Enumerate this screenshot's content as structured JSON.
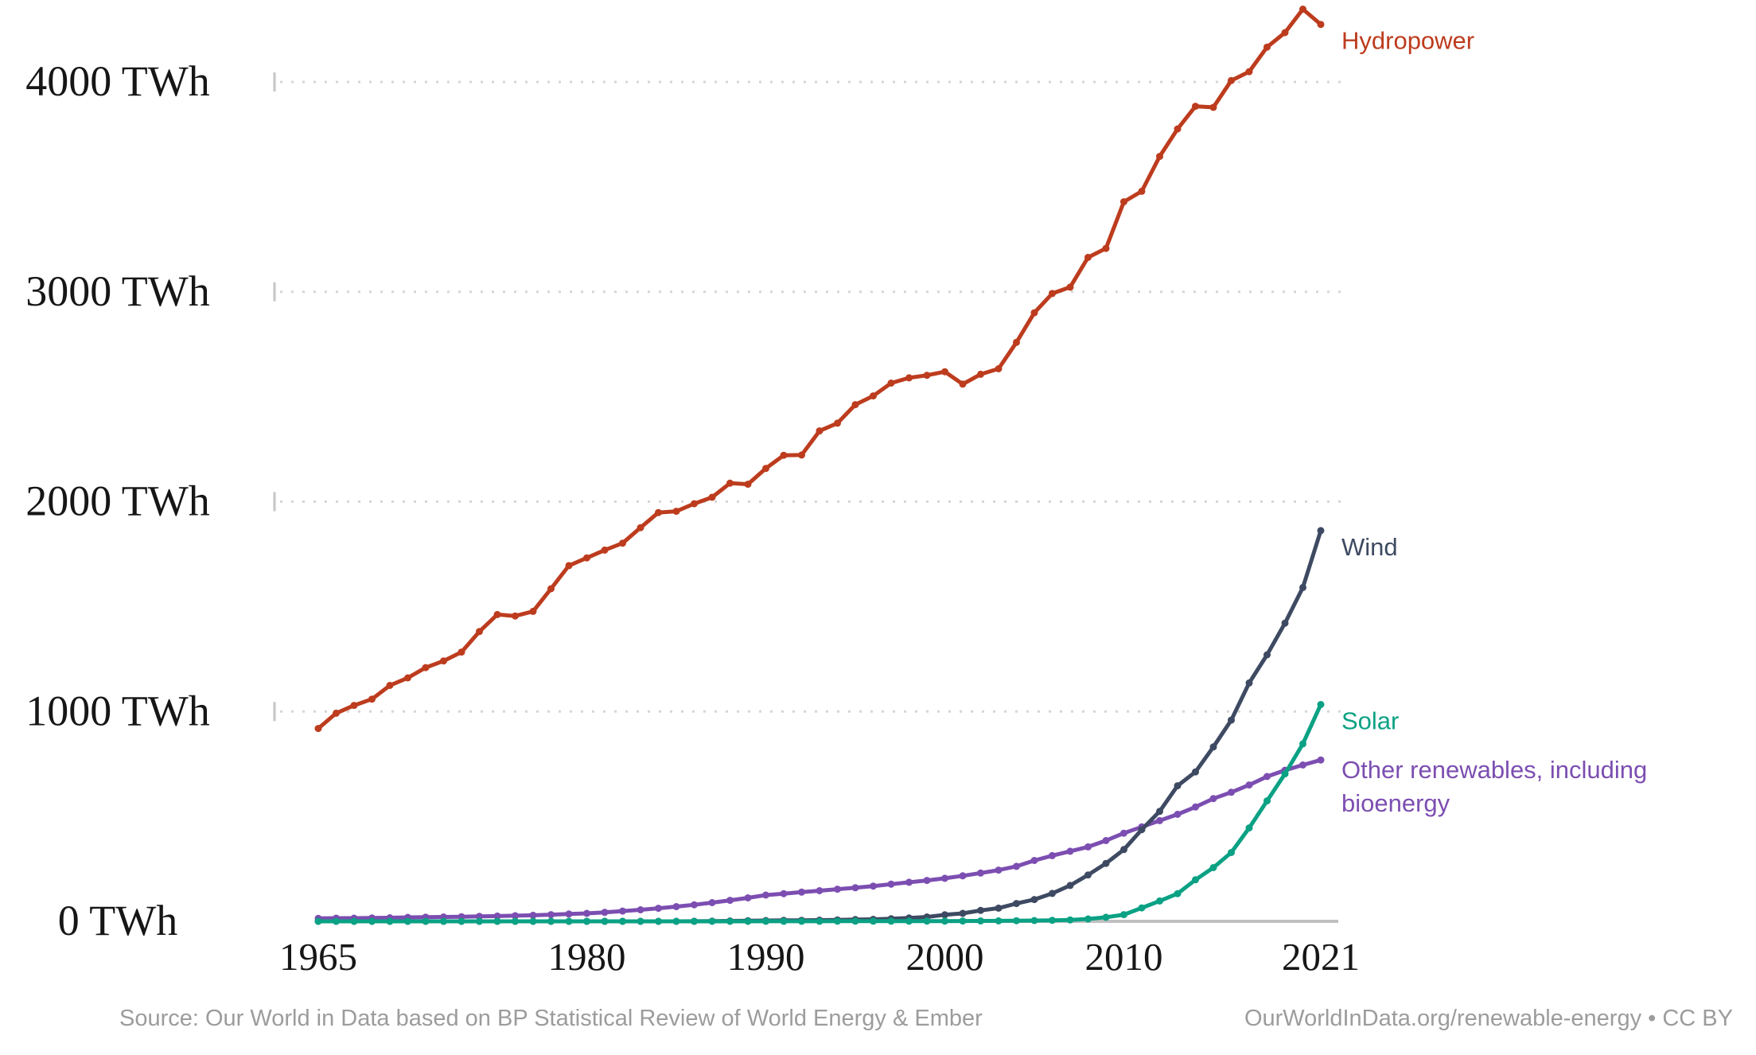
{
  "chart_data": {
    "type": "line",
    "title": "",
    "unit": "TWh",
    "grid": "horizontal-dotted",
    "legend_position": "end-of-line-labels",
    "x_axis": {
      "start_year": 1965,
      "end_year": 2021,
      "tick_years": [
        1965,
        1980,
        1990,
        2000,
        2010,
        2021
      ],
      "tick_labels": [
        "1965",
        "1980",
        "1990",
        "2000",
        "2010",
        "2021"
      ]
    },
    "y_axis": {
      "range": [
        0,
        4400
      ],
      "unit": "TWh",
      "gridline_values": [
        1000,
        2000,
        3000,
        4000
      ],
      "ticks": [
        {
          "value": 4000,
          "label": "4000 TWh"
        },
        {
          "value": 3000,
          "label": "3000 TWh"
        },
        {
          "value": 2000,
          "label": "2000 TWh"
        },
        {
          "value": 1000,
          "label": "1000 TWh"
        },
        {
          "value": 0,
          "label": "0 TWh"
        }
      ]
    },
    "series": [
      {
        "id": "hydropower",
        "name": "Hydropower",
        "label": "Hydropower",
        "color": "#bd3c1e",
        "start_year": 1965,
        "values": [
          919,
          992,
          1029,
          1059,
          1124,
          1160,
          1209,
          1241,
          1283,
          1381,
          1462,
          1455,
          1477,
          1585,
          1695,
          1732,
          1769,
          1802,
          1876,
          1948,
          1954,
          1990,
          2021,
          2088,
          2083,
          2158,
          2221,
          2222,
          2337,
          2374,
          2462,
          2504,
          2565,
          2590,
          2602,
          2619,
          2560,
          2607,
          2633,
          2759,
          2900,
          2992,
          3022,
          3164,
          3207,
          3429,
          3479,
          3645,
          3776,
          3884,
          3879,
          4007,
          4049,
          4166,
          4235,
          4347,
          4274
        ]
      },
      {
        "id": "other-renewables",
        "name": "Other renewables, including bioenergy",
        "label": "Other renewables, including\nbioenergy",
        "color": "#7c4eb1",
        "start_year": 1965,
        "values": [
          14,
          15,
          15,
          16,
          17,
          19,
          20,
          21,
          22,
          24,
          25,
          27,
          29,
          32,
          35,
          38,
          43,
          49,
          55,
          62,
          70,
          79,
          89,
          100,
          112,
          125,
          132,
          139,
          146,
          153,
          160,
          168,
          177,
          186,
          195,
          205,
          217,
          230,
          244,
          262,
          290,
          313,
          334,
          355,
          385,
          420,
          450,
          480,
          510,
          545,
          585,
          615,
          650,
          690,
          720,
          745,
          769
        ]
      },
      {
        "id": "wind",
        "name": "Wind",
        "label": "Wind",
        "color": "#3e4a62",
        "start_year": 1965,
        "values": [
          0,
          0,
          0,
          0,
          0,
          0,
          0,
          0,
          0,
          0,
          0,
          0,
          0,
          0,
          0,
          0,
          0,
          0,
          0,
          0,
          0.1,
          0.5,
          1,
          2,
          3,
          3.9,
          4.5,
          5,
          5.8,
          7,
          8.3,
          9.4,
          12,
          16,
          21,
          31,
          38,
          52,
          63,
          85,
          104,
          133,
          171,
          221,
          276,
          342,
          437,
          524,
          646,
          712,
          831,
          959,
          1136,
          1270,
          1421,
          1591,
          1862
        ]
      },
      {
        "id": "solar",
        "name": "Solar",
        "label": "Solar",
        "color": "#0ba184",
        "start_year": 1965,
        "values": [
          0,
          0,
          0,
          0,
          0,
          0,
          0,
          0,
          0,
          0,
          0,
          0,
          0,
          0,
          0,
          0,
          0,
          0,
          0,
          0,
          0,
          0,
          0,
          0,
          0,
          0.4,
          0.4,
          0.5,
          0.5,
          0.6,
          0.6,
          0.7,
          0.8,
          0.9,
          1,
          1.1,
          1.4,
          1.8,
          2.3,
          3,
          3.9,
          5,
          6.8,
          11.4,
          19.3,
          32,
          64,
          97,
          132,
          198,
          256,
          328,
          445,
          574,
          703,
          846,
          1033
        ]
      }
    ]
  },
  "footer": {
    "source": "Source: Our World in Data based on BP Statistical Review of World Energy & Ember",
    "attribution": "OurWorldInData.org/renewable-energy • CC BY"
  },
  "colors": {
    "hydropower": "#bd3c1e",
    "wind": "#3e4a62",
    "solar": "#0ba184",
    "other_renewables": "#7c4eb1",
    "gridline": "#d6d6d6",
    "axis_line": "#c0c0c0",
    "tick_text": "#161616",
    "footer_text": "#9c9c9c",
    "background": "#ffffff"
  }
}
